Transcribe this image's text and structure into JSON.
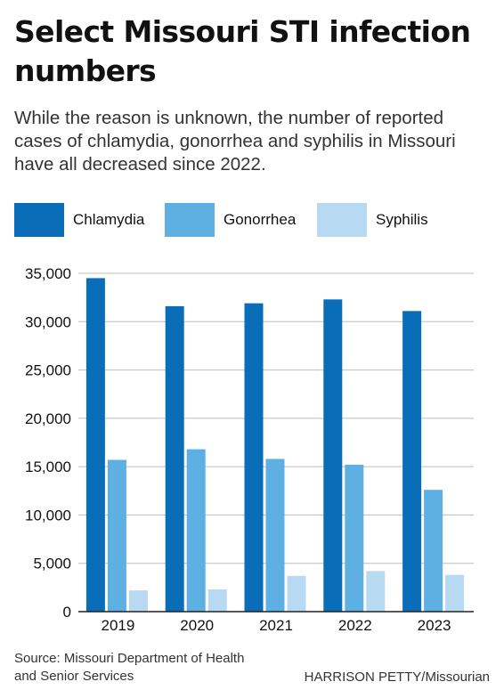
{
  "header": {
    "title": "Select Missouri STI infection numbers",
    "subtitle": "While the reason is unknown, the number of reported cases of chlamydia, gonorrhea and syphilis in Missouri have all decreased since 2022."
  },
  "footer": {
    "source": "Source: Missouri Department of Health and Senior Services",
    "credit": "HARRISON PETTY/Missourian"
  },
  "chart_data": {
    "type": "bar",
    "title": "Select Missouri STI infection numbers",
    "categories": [
      "2019",
      "2020",
      "2021",
      "2022",
      "2023"
    ],
    "series": [
      {
        "name": "Chlamydia",
        "color": "#0a6db8",
        "values": [
          34500,
          31600,
          31900,
          32300,
          31100
        ]
      },
      {
        "name": "Gonorrhea",
        "color": "#5eb0e2",
        "values": [
          15700,
          16800,
          15800,
          15200,
          12600
        ]
      },
      {
        "name": "Syphilis",
        "color": "#b7d9f2",
        "values": [
          2200,
          2300,
          3700,
          4200,
          3800
        ]
      }
    ],
    "yticks": [
      "35,000",
      "30,000",
      "25,000",
      "20,000",
      "15,000",
      "10,000",
      "5,000",
      "0"
    ],
    "ytick_values": [
      35000,
      30000,
      25000,
      20000,
      15000,
      10000,
      5000,
      0
    ],
    "ylim": [
      0,
      35000
    ],
    "xlabel": "",
    "ylabel": "",
    "grid": true,
    "legend_position": "top"
  }
}
